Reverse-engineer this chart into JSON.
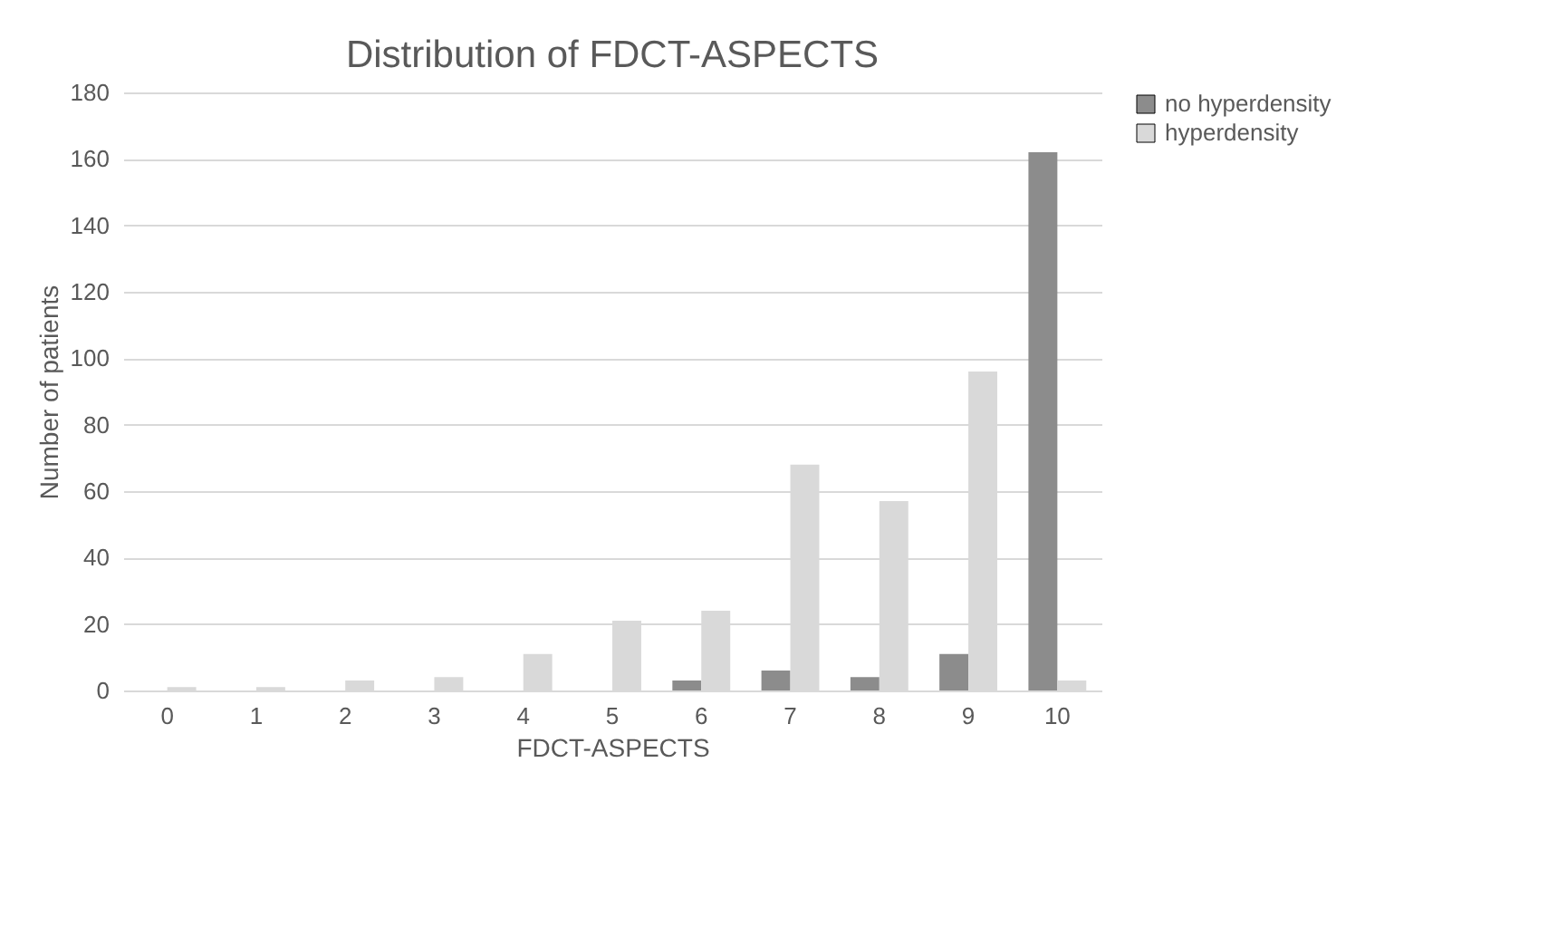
{
  "chart_data": {
    "type": "bar",
    "title": "Distribution of FDCT-ASPECTS",
    "xlabel": "FDCT-ASPECTS",
    "ylabel": "Number of patients",
    "categories": [
      "0",
      "1",
      "2",
      "3",
      "4",
      "5",
      "6",
      "7",
      "8",
      "9",
      "10"
    ],
    "series": [
      {
        "name": "no hyperdensity",
        "color": "#8c8c8c",
        "values": [
          0,
          0,
          0,
          0,
          0,
          0,
          3,
          6,
          4,
          11,
          162
        ]
      },
      {
        "name": "hyperdensity",
        "color": "#d9d9d9",
        "values": [
          1,
          1,
          3,
          4,
          11,
          21,
          24,
          68,
          57,
          96,
          3
        ]
      }
    ],
    "ylim": [
      0,
      180
    ],
    "yticks": [
      0,
      20,
      40,
      60,
      80,
      100,
      120,
      140,
      160,
      180
    ],
    "grid": "y",
    "legend": "right"
  }
}
